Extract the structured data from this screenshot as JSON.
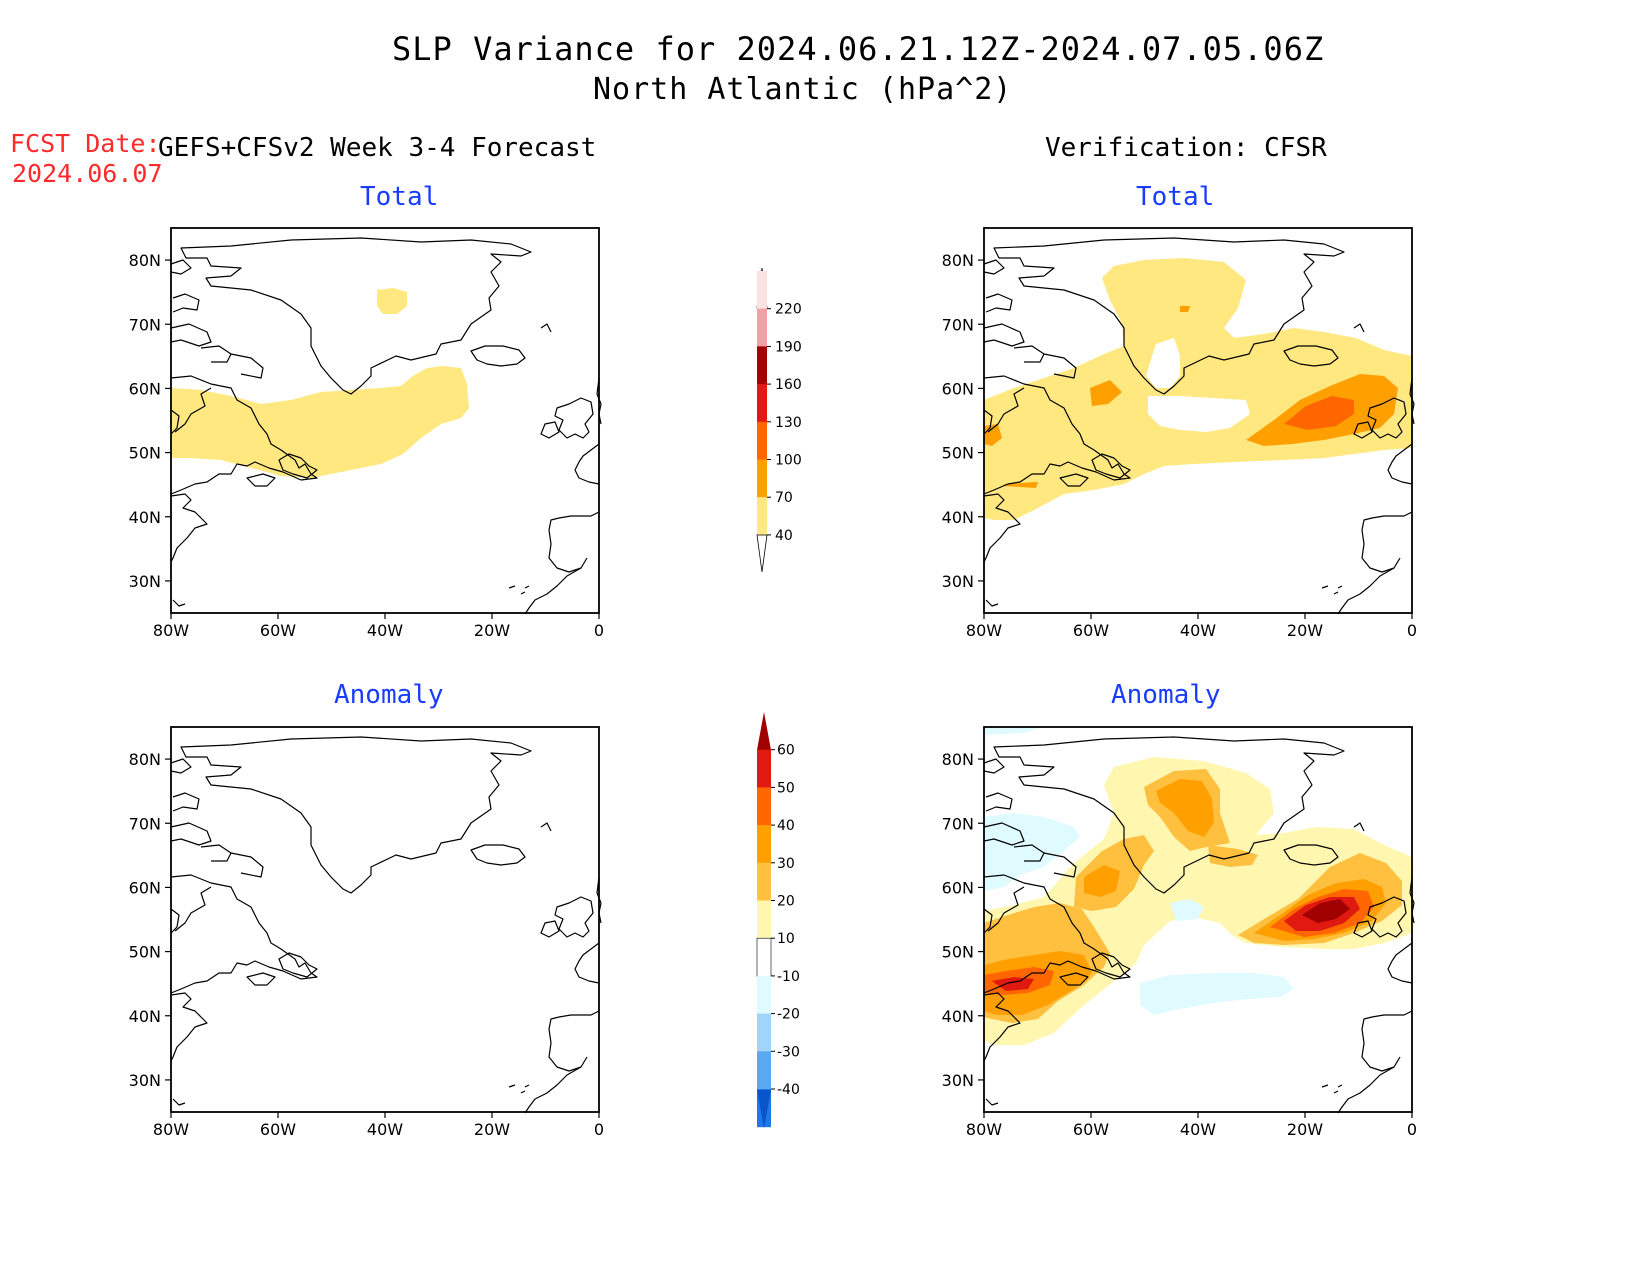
{
  "header": {
    "title": "SLP Variance for 2024.06.21.12Z-2024.07.05.06Z",
    "subtitle": "North Atlantic (hPa^2)",
    "fcst_label": "FCST Date:",
    "fcst_date": "2024.06.07",
    "left_column_title": "GEFS+CFSv2 Week 3-4 Forecast",
    "right_column_title": "Verification: CFSR"
  },
  "panels": [
    {
      "id": "fcst-total",
      "label": "Total"
    },
    {
      "id": "ver-total",
      "label": "Total"
    },
    {
      "id": "fcst-anomaly",
      "label": "Anomaly"
    },
    {
      "id": "ver-anomaly",
      "label": "Anomaly"
    }
  ],
  "axes": {
    "lat_ticks": [
      "80N",
      "70N",
      "60N",
      "50N",
      "40N",
      "30N"
    ],
    "lon_ticks": [
      "80W",
      "60W",
      "40W",
      "20W",
      "0"
    ],
    "lat_values": [
      80,
      70,
      60,
      50,
      40,
      30
    ],
    "lon_values": [
      -80,
      -60,
      -40,
      -20,
      0
    ],
    "lat_range": [
      25,
      85
    ],
    "lon_range": [
      -80,
      0
    ]
  },
  "colorbars": {
    "total": {
      "labels": [
        "220",
        "190",
        "160",
        "130",
        "100",
        "70",
        "40"
      ],
      "colors": [
        "#fde2e2",
        "#f1a1a5",
        "#a00000",
        "#e01a10",
        "#ff6600",
        "#ffa000",
        "#ffe880"
      ]
    },
    "anomaly": {
      "labels": [
        "60",
        "50",
        "40",
        "30",
        "20",
        "10",
        "-10",
        "-20",
        "-30",
        "-40"
      ],
      "colors": [
        "#a00000",
        "#e01a10",
        "#ff6600",
        "#ffa000",
        "#ffc040",
        "#fff7b0",
        "#ffffff",
        "#e0fbff",
        "#a0d4f8",
        "#5aa8f0",
        "#1e78e8",
        "#0a55cc"
      ]
    }
  }
}
